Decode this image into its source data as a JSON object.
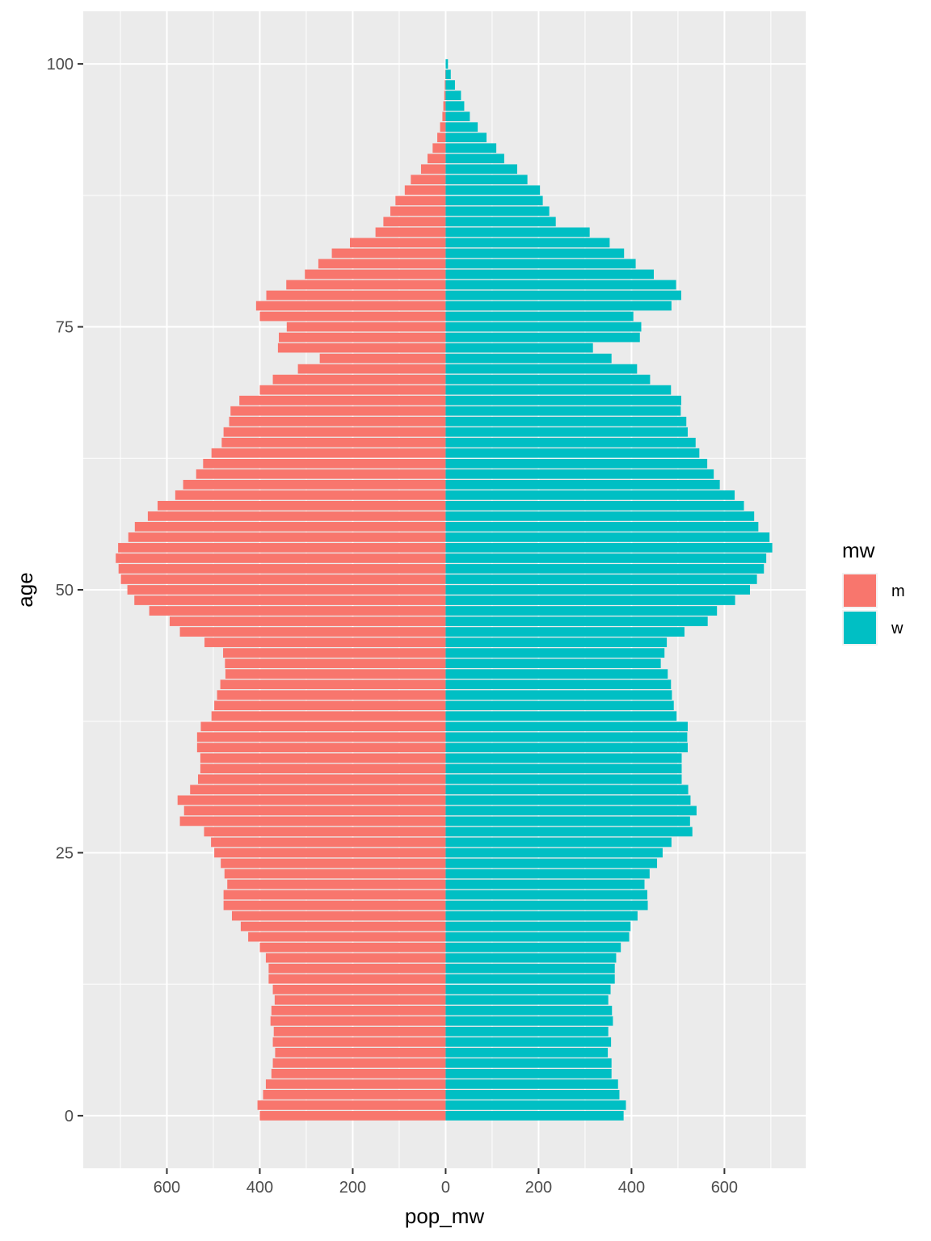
{
  "chart_data": {
    "type": "bar",
    "orientation": "horizontal-mirrored",
    "xlabel": "pop_mw",
    "ylabel": "age",
    "x_ticks": [
      -600,
      -400,
      -200,
      0,
      200,
      400,
      600
    ],
    "x_tick_labels": [
      "600",
      "400",
      "200",
      "0",
      "200",
      "400",
      "600"
    ],
    "y_ticks": [
      0,
      25,
      50,
      75,
      100
    ],
    "y_tick_labels": [
      "0",
      "25",
      "50",
      "75",
      "100"
    ],
    "xlim": [
      -780,
      775
    ],
    "ylim": [
      -5,
      105
    ],
    "grid": true,
    "legend": {
      "title": "mw",
      "position": "right"
    },
    "ages": [
      0,
      1,
      2,
      3,
      4,
      5,
      6,
      7,
      8,
      9,
      10,
      11,
      12,
      13,
      14,
      15,
      16,
      17,
      18,
      19,
      20,
      21,
      22,
      23,
      24,
      25,
      26,
      27,
      28,
      29,
      30,
      31,
      32,
      33,
      34,
      35,
      36,
      37,
      38,
      39,
      40,
      41,
      42,
      43,
      44,
      45,
      46,
      47,
      48,
      49,
      50,
      51,
      52,
      53,
      54,
      55,
      56,
      57,
      58,
      59,
      60,
      61,
      62,
      63,
      64,
      65,
      66,
      67,
      68,
      69,
      70,
      71,
      72,
      73,
      74,
      75,
      76,
      77,
      78,
      79,
      80,
      81,
      82,
      83,
      84,
      85,
      86,
      87,
      88,
      89,
      90,
      91,
      92,
      93,
      94,
      95,
      96,
      97,
      98,
      99,
      100
    ],
    "series": [
      {
        "name": "m",
        "color": "#F8766D",
        "values": [
          400,
          405,
          393,
          387,
          375,
          372,
          367,
          372,
          370,
          377,
          375,
          368,
          372,
          381,
          381,
          387,
          400,
          425,
          441,
          460,
          478,
          478,
          470,
          476,
          484,
          498,
          505,
          520,
          572,
          563,
          577,
          550,
          533,
          528,
          528,
          535,
          535,
          527,
          504,
          498,
          492,
          485,
          474,
          475,
          479,
          519,
          572,
          594,
          638,
          670,
          685,
          699,
          704,
          710,
          705,
          683,
          669,
          641,
          620,
          582,
          565,
          537,
          522,
          504,
          482,
          478,
          466,
          463,
          444,
          400,
          372,
          318,
          271,
          361,
          359,
          342,
          400,
          408,
          386,
          343,
          303,
          274,
          245,
          206,
          151,
          134,
          119,
          108,
          88,
          75,
          53,
          39,
          28,
          18,
          12,
          7,
          5,
          3,
          2,
          1,
          0
        ]
      },
      {
        "name": "w",
        "color": "#00BFC4",
        "values": [
          383,
          388,
          374,
          371,
          357,
          357,
          349,
          356,
          350,
          360,
          358,
          350,
          355,
          364,
          364,
          367,
          377,
          395,
          398,
          413,
          435,
          434,
          428,
          439,
          455,
          467,
          486,
          531,
          526,
          540,
          527,
          522,
          508,
          508,
          508,
          521,
          520,
          521,
          497,
          491,
          487,
          485,
          478,
          463,
          471,
          476,
          514,
          564,
          584,
          623,
          655,
          670,
          685,
          690,
          703,
          697,
          673,
          664,
          642,
          622,
          590,
          577,
          563,
          546,
          538,
          521,
          518,
          506,
          507,
          485,
          440,
          412,
          357,
          317,
          418,
          421,
          404,
          486,
          507,
          496,
          448,
          409,
          384,
          353,
          310,
          237,
          223,
          209,
          203,
          176,
          154,
          126,
          109,
          88,
          69,
          52,
          40,
          33,
          20,
          11,
          5
        ]
      }
    ]
  }
}
